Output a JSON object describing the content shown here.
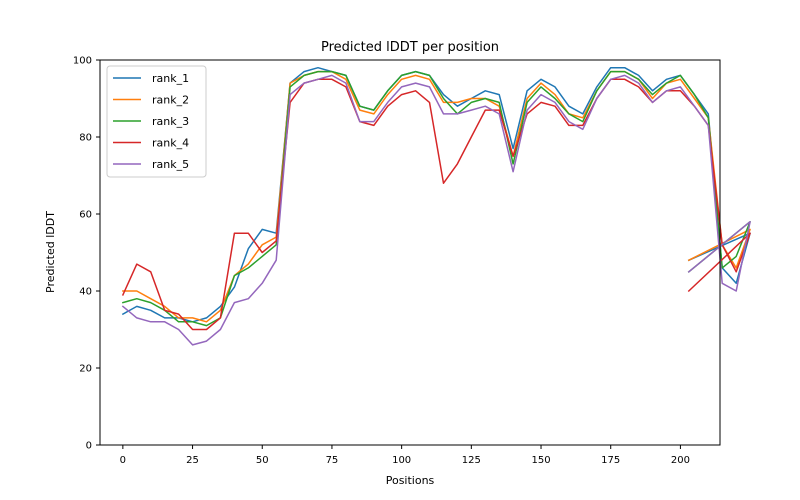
{
  "chart_data": {
    "type": "line",
    "title": "Predicted lDDT per position",
    "xlabel": "Positions",
    "ylabel": "Predicted lDDT",
    "xlim": [
      -8.2,
      214.2
    ],
    "ylim": [
      0,
      100
    ],
    "xticks": [
      0,
      25,
      50,
      75,
      100,
      125,
      150,
      175,
      200
    ],
    "yticks": [
      0,
      20,
      40,
      60,
      80,
      100
    ],
    "grid": false,
    "legend_position": "upper-left",
    "x_interval": 5,
    "series": [
      {
        "name": "rank_1",
        "color": "#1f77b4",
        "values": [
          34,
          36,
          35,
          33,
          33,
          32,
          33,
          36,
          41,
          51,
          56,
          55,
          94,
          97,
          98,
          97,
          96,
          88,
          87,
          92,
          96,
          97,
          96,
          91,
          88,
          90,
          92,
          91,
          77,
          92,
          95,
          93,
          88,
          86,
          93,
          98,
          98,
          96,
          92,
          95,
          96,
          91,
          86,
          46,
          42,
          55,
          48
        ]
      },
      {
        "name": "rank_2",
        "color": "#ff7f0e",
        "values": [
          40,
          40,
          38,
          36,
          33,
          33,
          32,
          35,
          44,
          47,
          52,
          54,
          94,
          96,
          97,
          97,
          95,
          87,
          86,
          91,
          95,
          96,
          95,
          89,
          89,
          90,
          90,
          88,
          75,
          90,
          94,
          91,
          86,
          85,
          92,
          97,
          97,
          95,
          90,
          94,
          95,
          90,
          85,
          52,
          46,
          56,
          48
        ]
      },
      {
        "name": "rank_3",
        "color": "#2ca02c",
        "values": [
          37,
          38,
          37,
          35,
          32,
          32,
          31,
          33,
          44,
          46,
          49,
          52,
          93,
          96,
          97,
          97,
          96,
          88,
          87,
          92,
          96,
          97,
          96,
          90,
          86,
          89,
          90,
          89,
          73,
          89,
          93,
          90,
          86,
          84,
          92,
          97,
          97,
          95,
          91,
          94,
          96,
          91,
          85,
          46,
          49,
          58,
          45
        ]
      },
      {
        "name": "rank_4",
        "color": "#d62728",
        "values": [
          39,
          47,
          45,
          35,
          34,
          30,
          30,
          33,
          55,
          55,
          50,
          53,
          89,
          94,
          95,
          95,
          93,
          84,
          83,
          88,
          91,
          92,
          89,
          68,
          73,
          80,
          87,
          87,
          75,
          86,
          89,
          88,
          83,
          83,
          90,
          95,
          95,
          93,
          89,
          92,
          92,
          88,
          83,
          52,
          45,
          55,
          40
        ]
      },
      {
        "name": "rank_5",
        "color": "#9467bd",
        "values": [
          36,
          33,
          32,
          32,
          30,
          26,
          27,
          30,
          37,
          38,
          42,
          48,
          91,
          94,
          95,
          96,
          94,
          84,
          84,
          89,
          93,
          94,
          93,
          86,
          86,
          87,
          88,
          86,
          71,
          87,
          91,
          89,
          84,
          82,
          90,
          95,
          96,
          94,
          89,
          92,
          93,
          88,
          83,
          42,
          40,
          58,
          45
        ]
      }
    ]
  }
}
